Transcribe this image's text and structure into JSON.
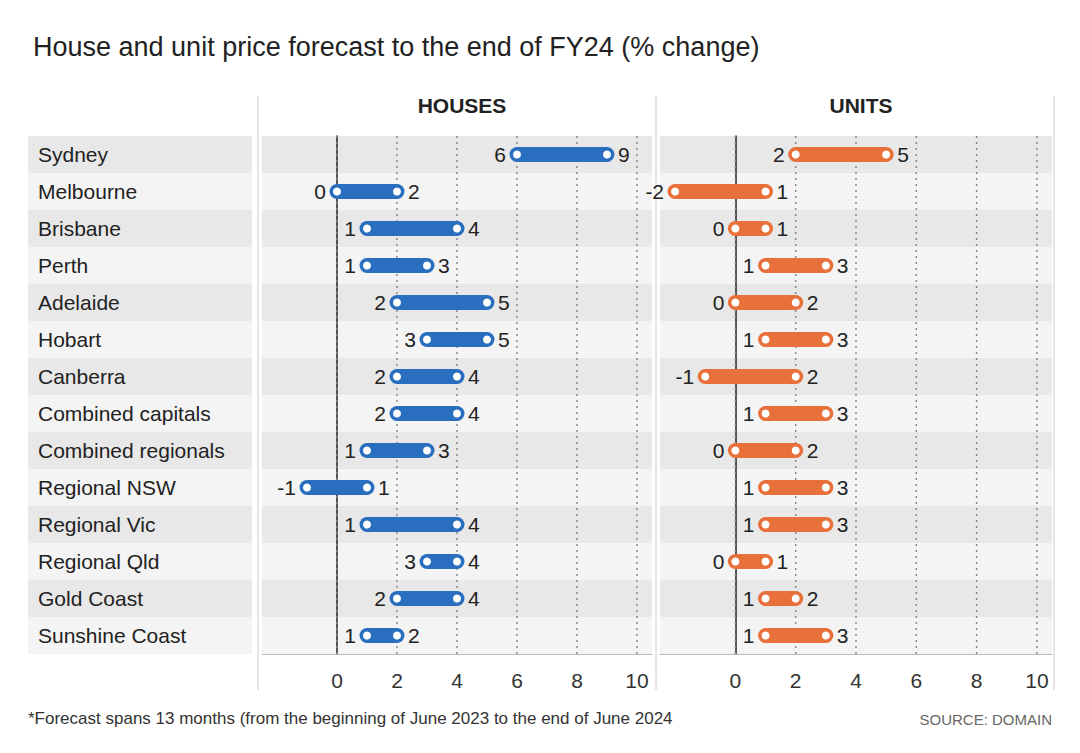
{
  "chart_data": {
    "type": "dumbbell",
    "title": "House and unit price forecast to the end of FY24 (% change)",
    "annotations": [
      "*Forecast spans 13 months (from the beginning of June 2023 to the end of June 2024",
      "SOURCE: DOMAIN"
    ],
    "orientation": "horizontal",
    "data_labels": true,
    "grid": true,
    "categories": [
      "Sydney",
      "Melbourne",
      "Brisbane",
      "Perth",
      "Adelaide",
      "Hobart",
      "Canberra",
      "Combined capitals",
      "Combined regionals",
      "Regional NSW",
      "Regional Vic",
      "Regional Qld",
      "Gold Coast",
      "Sunshine Coast"
    ],
    "xlim": [
      -2.5,
      10.5
    ],
    "xticks": [
      0,
      2,
      4,
      6,
      8,
      10
    ],
    "series": [
      {
        "name": "HOUSES",
        "color": "#2a6ebf",
        "values": [
          [
            6,
            9
          ],
          [
            0,
            2
          ],
          [
            1,
            4
          ],
          [
            1,
            3
          ],
          [
            2,
            5
          ],
          [
            3,
            5
          ],
          [
            2,
            4
          ],
          [
            2,
            4
          ],
          [
            1,
            3
          ],
          [
            -1,
            1
          ],
          [
            1,
            4
          ],
          [
            3,
            4
          ],
          [
            2,
            4
          ],
          [
            1,
            2
          ]
        ]
      },
      {
        "name": "UNITS",
        "color": "#e8703a",
        "values": [
          [
            2,
            5
          ],
          [
            -2,
            1
          ],
          [
            0,
            1
          ],
          [
            1,
            3
          ],
          [
            0,
            2
          ],
          [
            1,
            3
          ],
          [
            -1,
            2
          ],
          [
            1,
            3
          ],
          [
            0,
            2
          ],
          [
            1,
            3
          ],
          [
            1,
            3
          ],
          [
            0,
            1
          ],
          [
            1,
            2
          ],
          [
            1,
            3
          ]
        ]
      }
    ]
  }
}
